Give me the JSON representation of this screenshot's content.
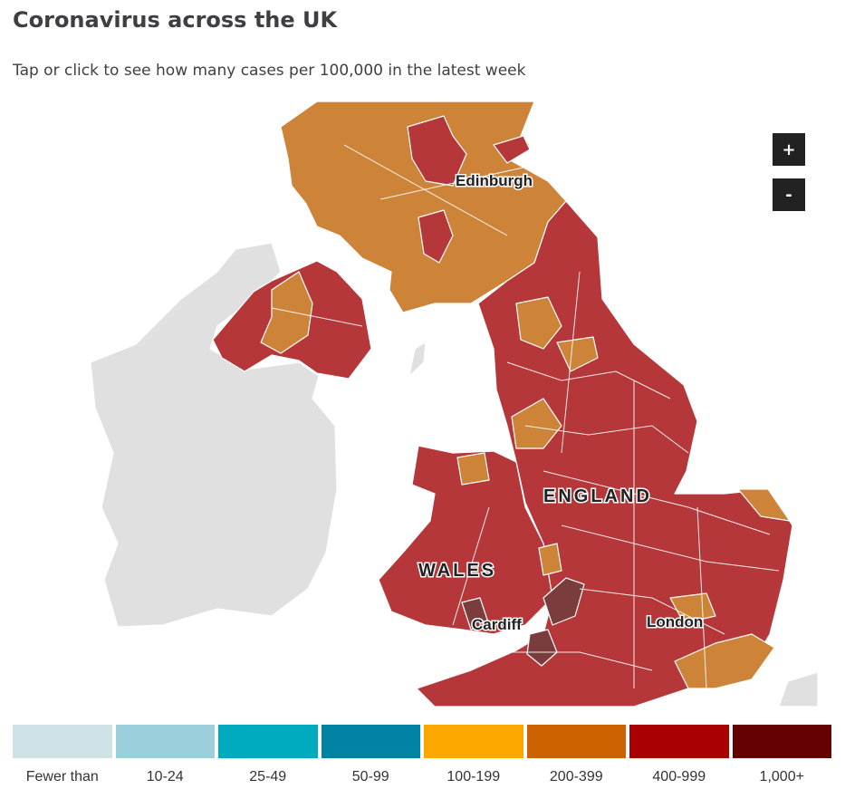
{
  "title": "Coronavirus across the UK",
  "subtitle": "Tap or click to see how many cases per 100,000 in the latest week",
  "zoom": {
    "in": "+",
    "out": "-"
  },
  "map_labels": {
    "edinburgh": "Edinburgh",
    "england": "ENGLAND",
    "wales": "WALES",
    "cardiff": "Cardiff",
    "london": "London"
  },
  "colors": {
    "no_data": "#e0e0e0",
    "orange": "#cd8338",
    "red": "#b5373a",
    "dark": "#7a3c3c"
  },
  "legend": [
    {
      "label": "Fewer than",
      "color": "#cfe2e6"
    },
    {
      "label": "10-24",
      "color": "#9bcfdb"
    },
    {
      "label": "25-49",
      "color": "#00abbd"
    },
    {
      "label": "50-99",
      "color": "#0082a3"
    },
    {
      "label": "100-199",
      "color": "#fda701"
    },
    {
      "label": "200-399",
      "color": "#cc6300"
    },
    {
      "label": "400-999",
      "color": "#a90002"
    },
    {
      "label": "1,000+",
      "color": "#640001"
    }
  ]
}
